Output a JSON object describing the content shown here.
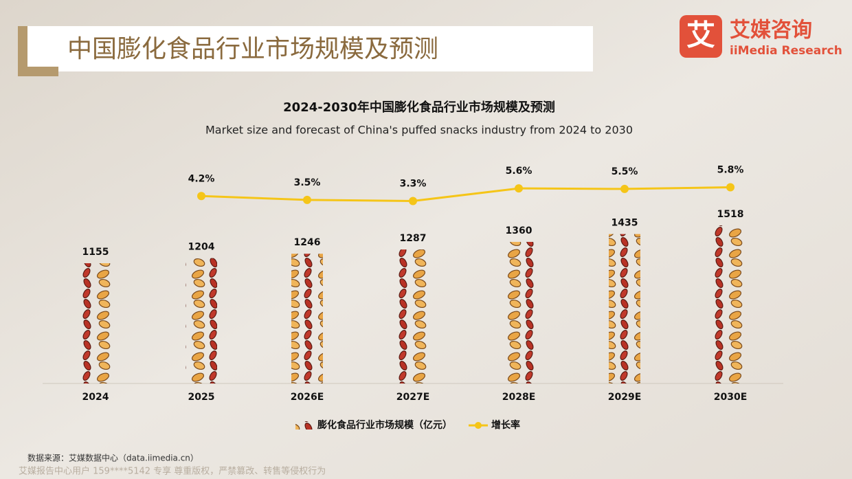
{
  "header": {
    "title": "中国膨化食品行业市场规模及预测"
  },
  "logo": {
    "mark": "艾",
    "name": "艾媒咨询",
    "english": "iiMedia Research"
  },
  "chart_data": {
    "type": "bar",
    "title": "2024-2030年中国膨化食品行业市场规模及预测",
    "subtitle": "Market size and forecast of China's puffed snacks industry from 2024 to 2030",
    "categories": [
      "2024",
      "2025",
      "2026E",
      "2027E",
      "2028E",
      "2029E",
      "2030E"
    ],
    "series": [
      {
        "name": "膨化食品行业市场规模（亿元）",
        "color": "#e9a545",
        "values": [
          1155,
          1204,
          1246,
          1287,
          1360,
          1435,
          1518
        ]
      },
      {
        "name": "增长率",
        "color": "#f5c518",
        "axis": "y2",
        "values": [
          null,
          4.2,
          3.5,
          3.3,
          5.6,
          5.5,
          5.8
        ],
        "value_labels": [
          null,
          "4.2%",
          "3.5%",
          "3.3%",
          "5.6%",
          "5.5%",
          "5.8%"
        ]
      }
    ],
    "ylim": [
      0,
      2000
    ],
    "y2lim": [
      -30,
      8
    ],
    "legend": "bottom"
  },
  "footer": {
    "source": "数据来源：艾媒数据中心（data.iimedia.cn）",
    "watermark": "艾媒报告中心用户 159****5142 专享 尊重版权，严禁篡改、转售等侵权行为"
  }
}
